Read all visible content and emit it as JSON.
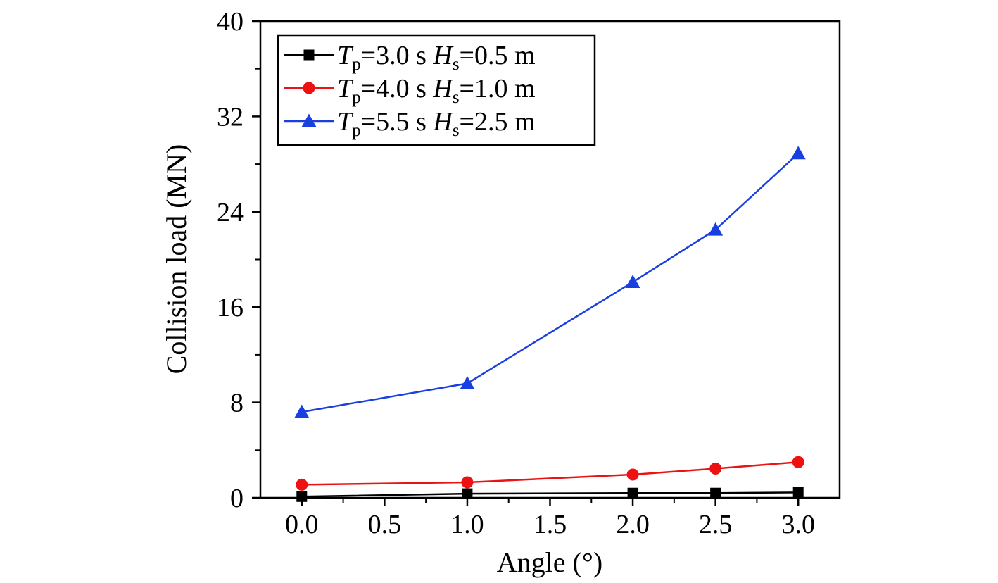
{
  "chart_data": {
    "type": "line",
    "xlabel": "Angle (°)",
    "ylabel": "Collision load (MN)",
    "xlim": [
      -0.25,
      3.25
    ],
    "ylim": [
      0,
      40
    ],
    "x_ticks": [
      "0.0",
      "0.5",
      "1.0",
      "1.5",
      "2.0",
      "2.5",
      "3.0"
    ],
    "y_ticks": [
      "0",
      "8",
      "16",
      "24",
      "32",
      "40"
    ],
    "x": [
      0.0,
      1.0,
      2.0,
      2.5,
      3.0
    ],
    "grid": false,
    "legend_position": "top-left",
    "series": [
      {
        "legend": {
          "t": "T",
          "t_sub": "p",
          "t_val": "=3.0 s",
          "h": "H",
          "h_sub": "s",
          "h_val": "=0.5 m"
        },
        "color": "#000000",
        "marker": "square",
        "values": [
          0.1,
          0.35,
          0.4,
          0.4,
          0.45
        ]
      },
      {
        "legend": {
          "t": "T",
          "t_sub": "p",
          "t_val": "=4.0 s",
          "h": "H",
          "h_sub": "s",
          "h_val": "=1.0 m"
        },
        "color": "#ee1111",
        "marker": "circle",
        "values": [
          1.1,
          1.3,
          1.95,
          2.45,
          3.0
        ]
      },
      {
        "legend": {
          "t": "T",
          "t_sub": "p",
          "t_val": "=5.5 s",
          "h": "H",
          "h_sub": "s",
          "h_val": "=2.5 m"
        },
        "color": "#1a3fe0",
        "marker": "triangle",
        "values": [
          7.2,
          9.6,
          18.1,
          22.5,
          28.9
        ]
      }
    ]
  }
}
